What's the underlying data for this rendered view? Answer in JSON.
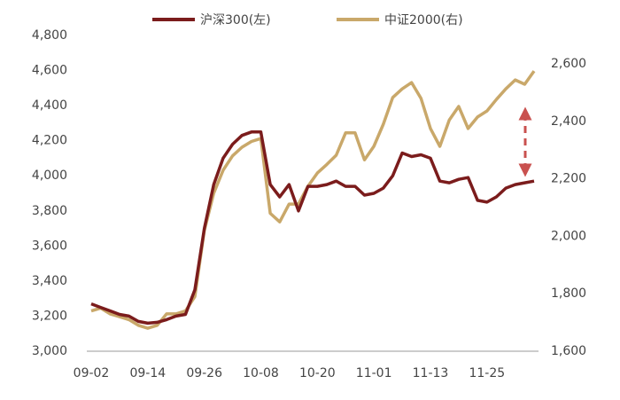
{
  "chart_data": {
    "type": "line",
    "categories": [
      "09-02",
      null,
      null,
      null,
      null,
      null,
      "09-14",
      null,
      null,
      null,
      null,
      null,
      "09-26",
      null,
      null,
      null,
      null,
      null,
      "10-08",
      null,
      null,
      null,
      null,
      null,
      "10-20",
      null,
      null,
      null,
      null,
      null,
      "11-01",
      null,
      null,
      null,
      null,
      null,
      "11-13",
      null,
      null,
      null,
      null,
      null,
      "11-25",
      null,
      null,
      null,
      null,
      null
    ],
    "series": [
      {
        "name": "沪深300(左)",
        "color": "#7b1c1c",
        "axis": "y",
        "values": [
          3270,
          3250,
          3230,
          3210,
          3200,
          3170,
          3160,
          3165,
          3180,
          3200,
          3210,
          3350,
          3700,
          3950,
          4100,
          4180,
          4230,
          4250,
          4250,
          3950,
          3880,
          3950,
          3800,
          3940,
          3940,
          3950,
          3970,
          3940,
          3940,
          3890,
          3900,
          3930,
          4000,
          4130,
          4110,
          4120,
          4100,
          3970,
          3960,
          3980,
          3990,
          3860,
          3850,
          3880,
          3930,
          3950,
          3960,
          3970
        ]
      },
      {
        "name": "中证2000(右)",
        "color": "#c9a86a",
        "axis": "y2",
        "values": [
          1740,
          1750,
          1730,
          1720,
          1710,
          1690,
          1680,
          1690,
          1730,
          1730,
          1740,
          1790,
          2020,
          2150,
          2230,
          2280,
          2310,
          2330,
          2340,
          2080,
          2050,
          2112,
          2112,
          2174,
          2220,
          2250,
          2282,
          2360,
          2360,
          2266,
          2313,
          2390,
          2483,
          2513,
          2535,
          2480,
          2375,
          2313,
          2405,
          2452,
          2375,
          2415,
          2436,
          2476,
          2513,
          2544,
          2529,
          2575
        ]
      }
    ],
    "ylim": [
      3000,
      4800
    ],
    "yticks": [
      {
        "value": 3000,
        "label": "3,000"
      },
      {
        "value": 3200,
        "label": "3,200"
      },
      {
        "value": 3400,
        "label": "3,400"
      },
      {
        "value": 3600,
        "label": "3,600"
      },
      {
        "value": 3800,
        "label": "3,800"
      },
      {
        "value": 4000,
        "label": "4,000"
      },
      {
        "value": 4200,
        "label": "4,200"
      },
      {
        "value": 4400,
        "label": "4,400"
      },
      {
        "value": 4600,
        "label": "4,600"
      },
      {
        "value": 4800,
        "label": "4,800"
      }
    ],
    "y2lim": [
      1600,
      2600
    ],
    "y2ticks": [
      {
        "value": 1600,
        "label": "1,600"
      },
      {
        "value": 1800,
        "label": "1,800"
      },
      {
        "value": 2000,
        "label": "2,000"
      },
      {
        "value": 2200,
        "label": "2,200"
      },
      {
        "value": 2400,
        "label": "2,400"
      },
      {
        "value": 2600,
        "label": "2,600"
      }
    ],
    "grid": false
  }
}
